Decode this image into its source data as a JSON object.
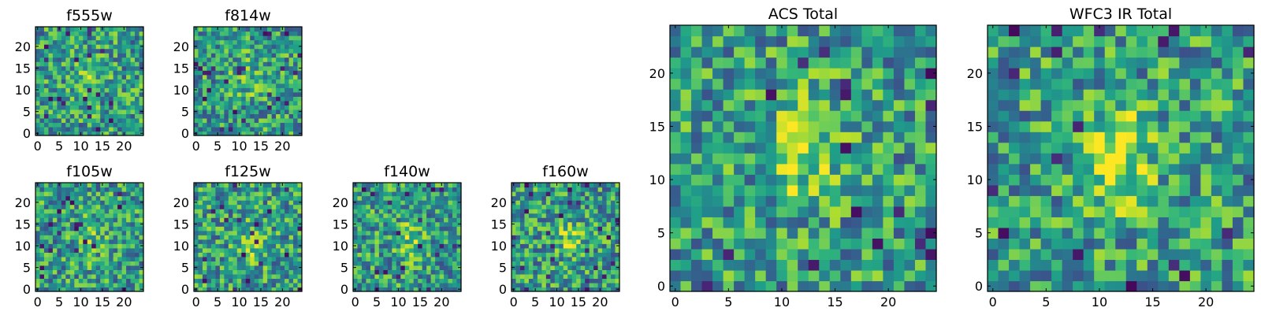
{
  "chart_data": [
    {
      "type": "heatmap",
      "title": "f555w",
      "seed": 11,
      "peak": 0.18,
      "blob": [
        12,
        13
      ],
      "rows": 25,
      "cols": 25,
      "xlim": [
        0,
        24
      ],
      "ylim": [
        0,
        24
      ],
      "xticks": [
        0,
        5,
        10,
        15,
        20
      ],
      "yticks": [
        0,
        5,
        10,
        15,
        20
      ]
    },
    {
      "type": "heatmap",
      "title": "f814w",
      "seed": 23,
      "peak": 0.18,
      "blob": [
        12,
        13
      ],
      "rows": 25,
      "cols": 25,
      "xlim": [
        0,
        24
      ],
      "ylim": [
        0,
        24
      ],
      "xticks": [
        0,
        5,
        10,
        15,
        20
      ],
      "yticks": [
        0,
        5,
        10,
        15,
        20
      ]
    },
    {
      "type": "heatmap",
      "title": "f105w",
      "seed": 37,
      "peak": 0.15,
      "blob": [
        12,
        12
      ],
      "rows": 25,
      "cols": 25,
      "xlim": [
        0,
        24
      ],
      "ylim": [
        0,
        24
      ],
      "xticks": [
        0,
        5,
        10,
        15,
        20
      ],
      "yticks": [
        0,
        5,
        10,
        15,
        20
      ]
    },
    {
      "type": "heatmap",
      "title": "f125w",
      "seed": 41,
      "peak": 0.2,
      "blob": [
        13,
        10
      ],
      "rows": 25,
      "cols": 25,
      "xlim": [
        0,
        24
      ],
      "ylim": [
        0,
        24
      ],
      "xticks": [
        0,
        5,
        10,
        15,
        20
      ],
      "yticks": [
        0,
        5,
        10,
        15,
        20
      ]
    },
    {
      "type": "heatmap",
      "title": "f140w",
      "seed": 53,
      "peak": 0.22,
      "blob": [
        13,
        11
      ],
      "rows": 25,
      "cols": 25,
      "xlim": [
        0,
        24
      ],
      "ylim": [
        0,
        24
      ],
      "xticks": [
        0,
        5,
        10,
        15,
        20
      ],
      "yticks": [
        0,
        5,
        10,
        15,
        20
      ]
    },
    {
      "type": "heatmap",
      "title": "f160w",
      "seed": 67,
      "peak": 0.22,
      "blob": [
        13,
        12
      ],
      "rows": 25,
      "cols": 25,
      "xlim": [
        0,
        24
      ],
      "ylim": [
        0,
        24
      ],
      "xticks": [
        0,
        5,
        10,
        15,
        20
      ],
      "yticks": [
        0,
        5,
        10,
        15,
        20
      ]
    },
    {
      "type": "heatmap",
      "title": "ACS Total",
      "seed": 79,
      "peak": 0.35,
      "blob": [
        12,
        13
      ],
      "rows": 25,
      "cols": 25,
      "xlim": [
        0,
        24
      ],
      "ylim": [
        0,
        24
      ],
      "xticks": [
        0,
        5,
        10,
        15,
        20
      ],
      "yticks": [
        0,
        5,
        10,
        15,
        20
      ]
    },
    {
      "type": "heatmap",
      "title": "WFC3 IR Total",
      "seed": 97,
      "peak": 0.4,
      "blob": [
        12,
        12
      ],
      "rows": 25,
      "cols": 25,
      "xlim": [
        0,
        24
      ],
      "ylim": [
        0,
        24
      ],
      "xticks": [
        0,
        5,
        10,
        15,
        20
      ],
      "yticks": [
        0,
        5,
        10,
        15,
        20
      ]
    }
  ]
}
